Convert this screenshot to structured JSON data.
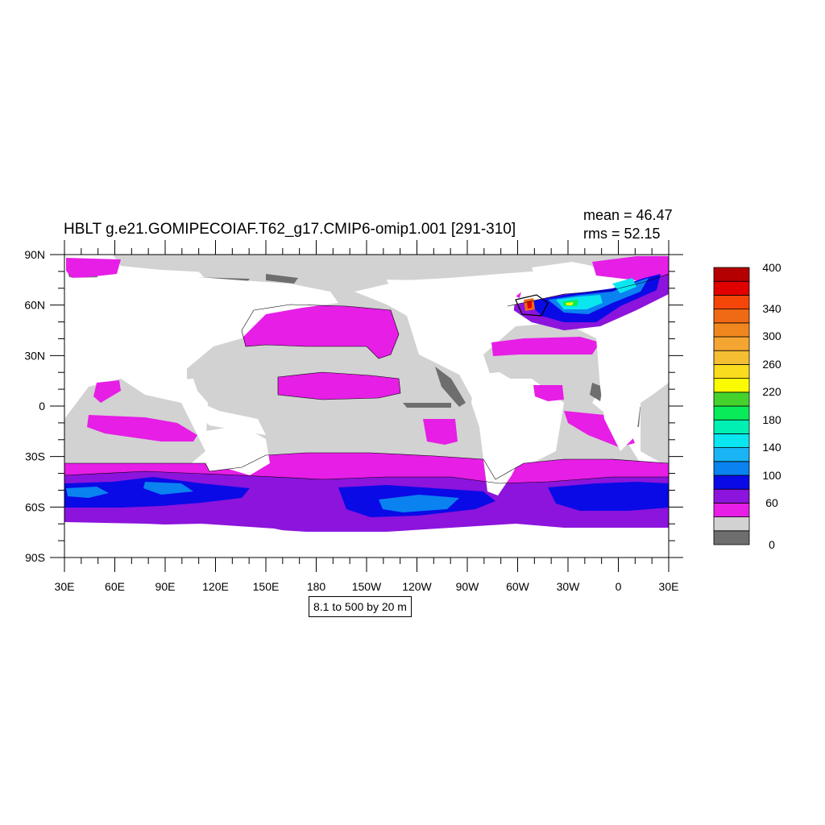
{
  "title": "HBLT g.e21.GOMIPECOIAF.T62_g17.CMIP6-omip1.001 [291-310]",
  "stats": {
    "mean": "mean = 46.47",
    "rms": "rms = 52.15"
  },
  "contour_info": "8.1 to 500 by 20 m",
  "axes": {
    "lat_labels": [
      "90N",
      "60N",
      "30N",
      "0",
      "30S",
      "60S",
      "90S"
    ],
    "lon_labels": [
      "30E",
      "60E",
      "90E",
      "120E",
      "150E",
      "180",
      "150W",
      "120W",
      "90W",
      "60W",
      "30W",
      "0",
      "30E"
    ]
  },
  "colorbar": {
    "colors": [
      "#6e6e6e",
      "#d2d2d2",
      "#e61ee6",
      "#8c14dc",
      "#0a0ae6",
      "#0a82f0",
      "#19b4f5",
      "#0ae6f0",
      "#00f0b4",
      "#0aeb5a",
      "#46d22d",
      "#fafa00",
      "#fadc1e",
      "#f5be32",
      "#f5a532",
      "#f0871e",
      "#f06914",
      "#f5460a",
      "#e10000",
      "#b40000"
    ],
    "labels": [
      "0",
      "60",
      "100",
      "140",
      "180",
      "220",
      "260",
      "300",
      "340",
      "400"
    ]
  },
  "map": {
    "colors": {
      "land": "#ffffff",
      "low": "#d2d2d2",
      "very_low": "#6e6e6e",
      "mid": "#e61ee6",
      "purple": "#8c14dc",
      "blue": "#0a0ae6",
      "lightblue": "#0a82f0",
      "skyblue": "#19b4f5",
      "cyan": "#0ae6f0",
      "green": "#0aeb5a",
      "yellow": "#fafa00",
      "orange": "#f06914",
      "red": "#e10000"
    }
  }
}
